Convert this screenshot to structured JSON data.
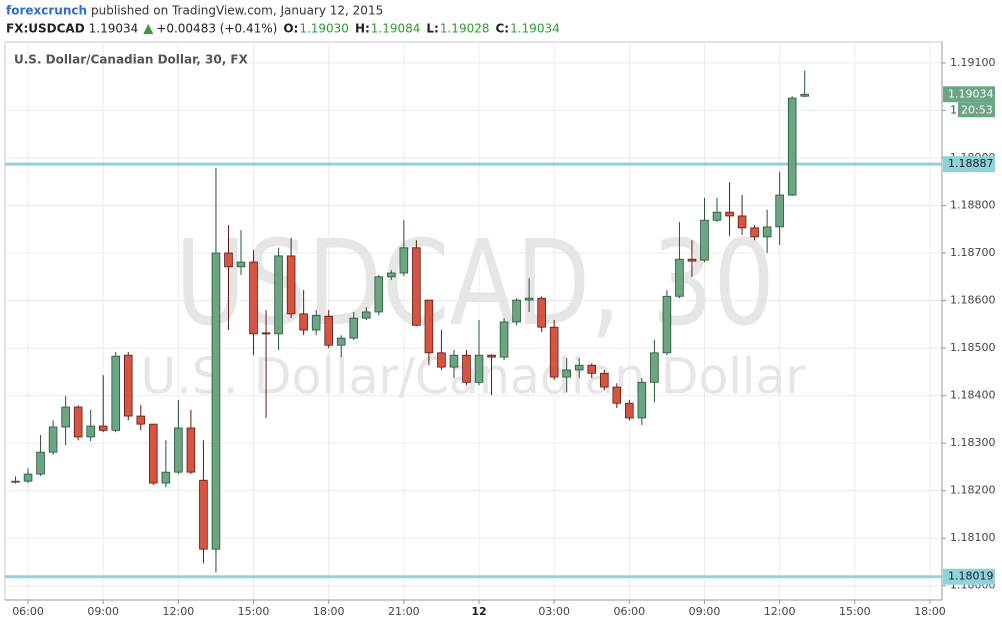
{
  "header": {
    "author": "forexcrunch",
    "published": "published on TradingView.com, January 12, 2015",
    "symbol": "FX:USDCAD",
    "price": "1.19034",
    "change": "+0.00483 (+0.41%)",
    "ohlc": [
      {
        "label": "O:",
        "value": "1.19030"
      },
      {
        "label": "H:",
        "value": "1.19084"
      },
      {
        "label": "L:",
        "value": "1.19028"
      },
      {
        "label": "C:",
        "value": "1.19034"
      }
    ]
  },
  "chart_data": {
    "type": "candlestick",
    "title": "U.S. Dollar/Canadian Dollar, 30, FX",
    "watermark": [
      "USDCAD, 30",
      "U.S. Dollar/Canadian Dollar"
    ],
    "up_color": "#6ba583",
    "down_color": "#d75442",
    "up_border": "#225437",
    "down_border": "#5b1a13",
    "x": [
      5.5,
      6,
      6.5,
      7,
      7.5,
      8,
      8.5,
      9,
      9.5,
      10,
      10.5,
      11,
      11.5,
      12,
      12.5,
      13,
      13.5,
      14,
      14.5,
      15,
      15.5,
      16,
      16.5,
      17,
      17.5,
      18,
      18.5,
      19,
      19.5,
      20,
      20.5,
      21,
      21.5,
      22,
      22.5,
      23,
      23.5,
      24,
      24.5,
      25,
      25.5,
      26,
      26.5,
      27,
      27.5,
      28,
      28.5,
      29,
      29.5,
      30,
      30.5,
      31,
      31.5,
      32,
      32.5,
      33,
      33.5,
      34,
      34.5,
      35,
      35.5,
      36,
      36.5,
      37
    ],
    "open": [
      1.18218,
      1.1822,
      1.18235,
      1.18281,
      1.18334,
      1.18376,
      1.18313,
      1.18336,
      1.18327,
      1.18485,
      1.18357,
      1.1834,
      1.18216,
      1.18239,
      1.18332,
      1.18222,
      1.18077,
      1.187,
      1.18671,
      1.18681,
      1.18532,
      1.1853,
      1.18694,
      1.18572,
      1.18538,
      1.18567,
      1.18506,
      1.18521,
      1.18563,
      1.18576,
      1.1865,
      1.18658,
      1.18711,
      1.18601,
      1.1849,
      1.1846,
      1.18485,
      1.18428,
      1.18485,
      1.18481,
      1.18555,
      1.18601,
      1.18605,
      1.18544,
      1.18439,
      1.18454,
      1.18464,
      1.18447,
      1.18418,
      1.18384,
      1.18353,
      1.18428,
      1.1849,
      1.18609,
      1.18687,
      1.18685,
      1.18769,
      1.18786,
      1.18778,
      1.18753,
      1.18734,
      1.18755,
      1.18822,
      1.1903
    ],
    "high": [
      1.1823,
      1.18247,
      1.18317,
      1.18348,
      1.18399,
      1.1838,
      1.1837,
      1.18443,
      1.18492,
      1.18492,
      1.1838,
      1.1834,
      1.18306,
      1.18391,
      1.1837,
      1.18306,
      1.18879,
      1.18759,
      1.18748,
      1.18706,
      1.1858,
      1.18711,
      1.18732,
      1.18622,
      1.1858,
      1.1858,
      1.18527,
      1.18576,
      1.18586,
      1.18654,
      1.18664,
      1.18769,
      1.18727,
      1.18601,
      1.18538,
      1.18496,
      1.18496,
      1.18559,
      1.18487,
      1.18563,
      1.18605,
      1.18647,
      1.18609,
      1.18559,
      1.18479,
      1.18479,
      1.18468,
      1.18454,
      1.18426,
      1.18391,
      1.18437,
      1.18517,
      1.18622,
      1.18765,
      1.18727,
      1.18816,
      1.18816,
      1.18849,
      1.18822,
      1.18759,
      1.18791,
      1.18871,
      1.1903,
      1.19084
    ],
    "low": [
      1.18215,
      1.18216,
      1.18231,
      1.18275,
      1.18296,
      1.18306,
      1.18304,
      1.18323,
      1.18323,
      1.18348,
      1.18327,
      1.18212,
      1.18207,
      1.18235,
      1.18235,
      1.18047,
      1.18028,
      1.18538,
      1.18654,
      1.18485,
      1.18353,
      1.18496,
      1.18563,
      1.18527,
      1.18527,
      1.185,
      1.18481,
      1.18517,
      1.18559,
      1.18569,
      1.18643,
      1.18652,
      1.18546,
      1.18464,
      1.18454,
      1.18437,
      1.18422,
      1.18422,
      1.18401,
      1.18475,
      1.18548,
      1.18576,
      1.18534,
      1.18433,
      1.18407,
      1.18437,
      1.18437,
      1.18412,
      1.18374,
      1.18348,
      1.18338,
      1.18386,
      1.18485,
      1.18605,
      1.1865,
      1.18681,
      1.18765,
      1.18736,
      1.18738,
      1.18727,
      1.187,
      1.18717,
      1.1882,
      1.19028
    ],
    "close": [
      1.1822,
      1.18235,
      1.18281,
      1.18334,
      1.18376,
      1.18313,
      1.18336,
      1.18327,
      1.18483,
      1.18357,
      1.1834,
      1.18216,
      1.18239,
      1.18332,
      1.18239,
      1.18077,
      1.187,
      1.18671,
      1.18681,
      1.1853,
      1.1853,
      1.18694,
      1.18572,
      1.18538,
      1.18569,
      1.18506,
      1.18521,
      1.18563,
      1.18576,
      1.1865,
      1.18658,
      1.18711,
      1.18548,
      1.1849,
      1.1846,
      1.18485,
      1.18428,
      1.18485,
      1.18481,
      1.18555,
      1.18601,
      1.18605,
      1.18544,
      1.18439,
      1.18454,
      1.18464,
      1.18447,
      1.18418,
      1.18384,
      1.18353,
      1.18428,
      1.1849,
      1.18609,
      1.18687,
      1.18683,
      1.18769,
      1.18786,
      1.18778,
      1.18753,
      1.18734,
      1.18755,
      1.18822,
      1.19026,
      1.19034
    ],
    "xlim": [
      5.08,
      42.48
    ],
    "xticks": [
      {
        "value": 6,
        "label": "06:00"
      },
      {
        "value": 9,
        "label": "09:00"
      },
      {
        "value": 12,
        "label": "12:00"
      },
      {
        "value": 15,
        "label": "15:00"
      },
      {
        "value": 18,
        "label": "18:00"
      },
      {
        "value": 21,
        "label": "21:00"
      },
      {
        "value": 24,
        "label": "12"
      },
      {
        "value": 27,
        "label": "03:00"
      },
      {
        "value": 30,
        "label": "06:00"
      },
      {
        "value": 33,
        "label": "09:00"
      },
      {
        "value": 36,
        "label": "12:00"
      },
      {
        "value": 39,
        "label": "15:00"
      },
      {
        "value": 42,
        "label": "18:00"
      }
    ],
    "ylim": [
      1.1797,
      1.19144
    ],
    "yticks": [
      {
        "value": 1.18,
        "label": "1.18000"
      },
      {
        "value": 1.181,
        "label": "1.18100"
      },
      {
        "value": 1.182,
        "label": "1.18200"
      },
      {
        "value": 1.183,
        "label": "1.18300"
      },
      {
        "value": 1.184,
        "label": "1.18400"
      },
      {
        "value": 1.185,
        "label": "1.18500"
      },
      {
        "value": 1.186,
        "label": "1.18600"
      },
      {
        "value": 1.187,
        "label": "1.18700"
      },
      {
        "value": 1.188,
        "label": "1.18800"
      },
      {
        "value": 1.189,
        "label": "1.18900"
      },
      {
        "value": 1.19,
        "label": "1.19000"
      },
      {
        "value": 1.191,
        "label": "1.19100"
      }
    ],
    "grid": true,
    "hlines": [
      {
        "value": 1.18887,
        "label": "1.18887",
        "color": "#8fd3d9"
      },
      {
        "value": 1.18019,
        "label": "1.18019",
        "color": "#8fd3d9"
      }
    ],
    "last_price": {
      "value": 1.19034,
      "label": "1.19034",
      "countdown": "20:53"
    }
  }
}
